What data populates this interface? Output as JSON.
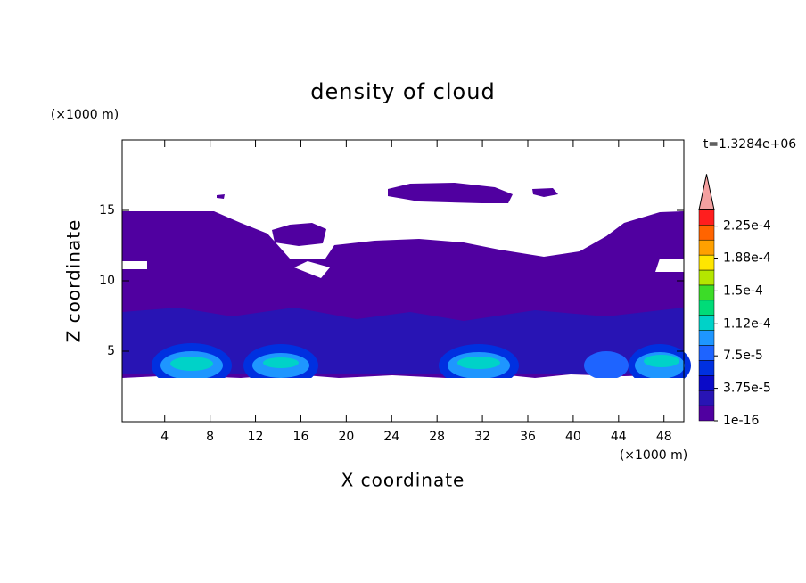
{
  "chart_data": {
    "type": "contour",
    "title": "density of cloud",
    "xlabel": "X coordinate",
    "ylabel": "Z coordinate",
    "xunit": "(×1000 m)",
    "yunit": "(×1000 m)",
    "annotation": "t=1.3284e+06",
    "xlim": [
      0.25,
      49.75
    ],
    "ylim": [
      0,
      20
    ],
    "xticks": [
      4,
      8,
      12,
      16,
      20,
      24,
      28,
      32,
      36,
      40,
      44,
      48
    ],
    "yticks": [
      5,
      10,
      15
    ],
    "colorbar": {
      "clim": [
        0,
        0.00024375
      ],
      "ticks": [
        {
          "value": 1e-16,
          "label": "1e-16"
        },
        {
          "value": 3.75e-05,
          "label": "3.75e-5"
        },
        {
          "value": 7.5e-05,
          "label": "7.5e-5"
        },
        {
          "value": 0.000112,
          "label": "1.12e-4"
        },
        {
          "value": 0.00015,
          "label": "1.5e-4"
        },
        {
          "value": 0.000188,
          "label": "1.88e-4"
        },
        {
          "value": 0.000225,
          "label": "2.25e-4"
        }
      ],
      "colors": [
        "#5000a0",
        "#2814b4",
        "#0a0ac8",
        "#0030e0",
        "#1e64ff",
        "#1e96ff",
        "#00d2c8",
        "#00dc78",
        "#3cdc28",
        "#b4e600",
        "#ffe600",
        "#ffa000",
        "#ff6400",
        "#ff1e1e"
      ],
      "extend_color": "#f4a0a0"
    }
  }
}
